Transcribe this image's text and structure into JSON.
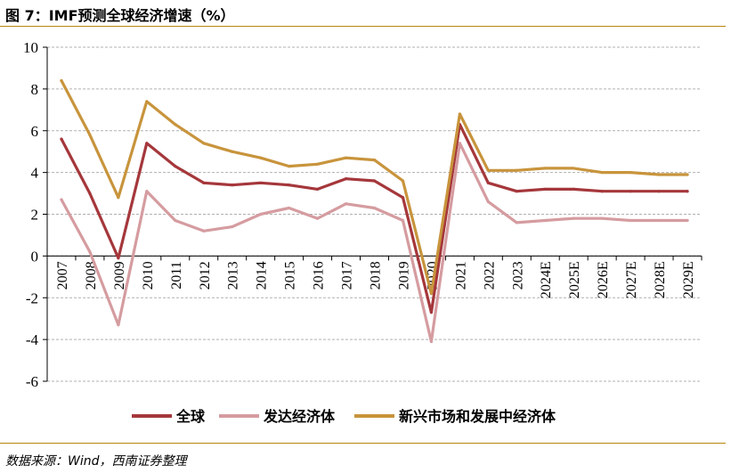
{
  "figure": {
    "title": "图 7：IMF预测全球经济增速（%）",
    "source": "数据来源：Wind，西南证券整理"
  },
  "colors": {
    "rule": "#b8860b",
    "grid": "#b0b0b0"
  },
  "chart_data": {
    "type": "line",
    "title": "",
    "xlabel": "",
    "ylabel": "",
    "ylim": [
      -6,
      10
    ],
    "yticks": [
      "10",
      "8",
      "6",
      "4",
      "2",
      "0",
      "-2",
      "-4",
      "-6"
    ],
    "grid": "horizontal dashed",
    "legend_position": "bottom",
    "categories": [
      "2007",
      "2008",
      "2009",
      "2010",
      "2011",
      "2012",
      "2013",
      "2014",
      "2015",
      "2016",
      "2017",
      "2018",
      "2019",
      "2020",
      "2021",
      "2022",
      "2023",
      "2024E",
      "2025E",
      "2026E",
      "2027E",
      "2028E",
      "2029E"
    ],
    "series": [
      {
        "name": "全球",
        "color": "#a5373b",
        "values": [
          5.6,
          3.0,
          -0.1,
          5.4,
          4.3,
          3.5,
          3.4,
          3.5,
          3.4,
          3.2,
          3.7,
          3.6,
          2.8,
          -2.7,
          6.3,
          3.5,
          3.1,
          3.2,
          3.2,
          3.1,
          3.1,
          3.1,
          3.1
        ]
      },
      {
        "name": "发达经济体",
        "color": "#d59ca0",
        "values": [
          2.7,
          0.2,
          -3.3,
          3.1,
          1.7,
          1.2,
          1.4,
          2.0,
          2.3,
          1.8,
          2.5,
          2.3,
          1.7,
          -4.1,
          5.4,
          2.6,
          1.6,
          1.7,
          1.8,
          1.8,
          1.7,
          1.7,
          1.7
        ]
      },
      {
        "name": "新兴市场和发展中经济体",
        "color": "#c8943c",
        "values": [
          8.4,
          5.8,
          2.8,
          7.4,
          6.3,
          5.4,
          5.0,
          4.7,
          4.3,
          4.4,
          4.7,
          4.6,
          3.6,
          -1.8,
          6.8,
          4.1,
          4.1,
          4.2,
          4.2,
          4.0,
          4.0,
          3.9,
          3.9
        ]
      }
    ]
  }
}
